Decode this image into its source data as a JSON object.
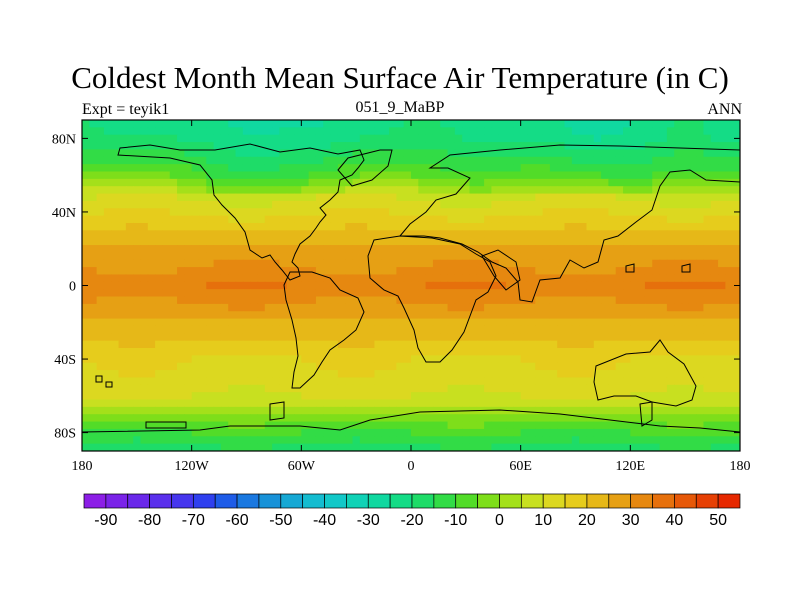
{
  "title": "Coldest Month Mean Surface Air Temperature (in C)",
  "subtitle_left": "Expt = teyik1",
  "subtitle_center": "051_9_MaBP",
  "subtitle_right": "ANN",
  "chart_data": {
    "type": "heatmap",
    "title": "Coldest Month Mean Surface Air Temperature (in C)",
    "units": "C",
    "x_axis": {
      "range": [
        -180,
        180
      ],
      "ticks": [
        -180,
        -120,
        -60,
        0,
        60,
        120,
        180
      ],
      "tick_labels": [
        "180",
        "120W",
        "60W",
        "0",
        "60E",
        "120E",
        "180"
      ]
    },
    "y_axis": {
      "range": [
        -90,
        90
      ],
      "ticks": [
        80,
        40,
        0,
        -40,
        -80
      ],
      "tick_labels": [
        "80N",
        "40N",
        "0",
        "40S",
        "80S"
      ]
    },
    "colorbar": {
      "levels": [
        -95,
        -90,
        -85,
        -80,
        -75,
        -70,
        -65,
        -60,
        -55,
        -50,
        -45,
        -40,
        -35,
        -30,
        -25,
        -20,
        -15,
        -10,
        -5,
        0,
        5,
        10,
        15,
        20,
        25,
        30,
        35,
        40,
        45,
        50,
        55
      ],
      "labels": [
        "-90",
        "-80",
        "-70",
        "-60",
        "-50",
        "-40",
        "-30",
        "-20",
        "-10",
        "0",
        "10",
        "20",
        "30",
        "40",
        "50"
      ],
      "label_values": [
        -90,
        -80,
        -70,
        -60,
        -50,
        -40,
        -30,
        -20,
        -10,
        0,
        10,
        20,
        30,
        40,
        50
      ],
      "colors": [
        "#8c1ee6",
        "#7a23e8",
        "#6a28ea",
        "#5a30ec",
        "#4636ee",
        "#2f40ef",
        "#1e5ce8",
        "#1a78e0",
        "#1892d8",
        "#16a8d4",
        "#14bcd0",
        "#12c8c8",
        "#10d2b6",
        "#10d8a0",
        "#14dc86",
        "#1edc68",
        "#32dc46",
        "#52dc28",
        "#7ede1a",
        "#a4e01a",
        "#c8e020",
        "#dcd820",
        "#e6cc1c",
        "#e6b818",
        "#e6a014",
        "#e68810",
        "#e6700c",
        "#e65808",
        "#e64004",
        "#e62800"
      ]
    },
    "field_profile_by_latitude": {
      "lat": [
        90,
        80,
        70,
        60,
        50,
        40,
        30,
        20,
        10,
        0,
        -10,
        -20,
        -30,
        -40,
        -50,
        -60,
        -70,
        -80,
        -90
      ],
      "mean": [
        -20,
        -18,
        -12,
        -5,
        8,
        14,
        20,
        26,
        30,
        34,
        30,
        24,
        20,
        15,
        13,
        10,
        0,
        -10,
        -18
      ]
    }
  }
}
